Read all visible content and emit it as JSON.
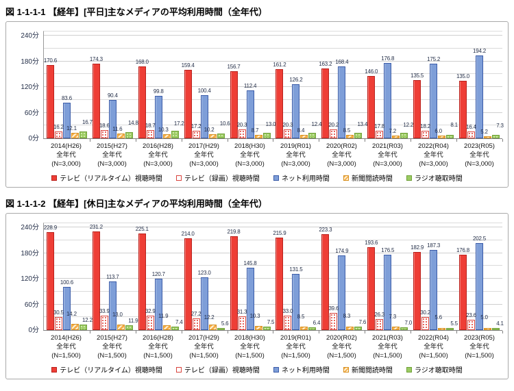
{
  "chart_data": [
    {
      "type": "bar",
      "title": "図 1-1-1-1 【経年】[平日]主なメディアの平均利用時間（全年代）",
      "y_unit": "分",
      "y_ticks": [
        0,
        60,
        120,
        180,
        240
      ],
      "ylim": [
        0,
        252
      ],
      "grid": true,
      "legend_position": "bottom",
      "categories": [
        {
          "year": "2014(H26)",
          "group": "全年代",
          "n": "(N=3,000)"
        },
        {
          "year": "2015(H27)",
          "group": "全年代",
          "n": "(N=3,000)"
        },
        {
          "year": "2016(H28)",
          "group": "全年代",
          "n": "(N=3,000)"
        },
        {
          "year": "2017(H29)",
          "group": "全年代",
          "n": "(N=3,000)"
        },
        {
          "year": "2018(H30)",
          "group": "全年代",
          "n": "(N=3,000)"
        },
        {
          "year": "2019(R01)",
          "group": "全年代",
          "n": "(N=3,000)"
        },
        {
          "year": "2020(R02)",
          "group": "全年代",
          "n": "(N=3,000)"
        },
        {
          "year": "2021(R03)",
          "group": "全年代",
          "n": "(N=3,000)"
        },
        {
          "year": "2022(R04)",
          "group": "全年代",
          "n": "(N=3,000)"
        },
        {
          "year": "2023(R05)",
          "group": "全年代",
          "n": "(N=3,000)"
        }
      ],
      "series": [
        {
          "id": "tv-real",
          "name": "テレビ（リアルタイム）視聴時間",
          "color": "#ee3e36",
          "values": [
            170.6,
            174.3,
            168.0,
            159.4,
            156.7,
            161.2,
            163.2,
            146.0,
            135.5,
            135.0
          ]
        },
        {
          "id": "tv-rec",
          "name": "テレビ（録画）視聴時間",
          "color": "#ffffff",
          "values": [
            16.2,
            18.6,
            18.7,
            17.2,
            20.3,
            20.3,
            20.2,
            17.8,
            18.2,
            16.4
          ]
        },
        {
          "id": "net",
          "name": "ネット利用時間",
          "color": "#7e9ed8",
          "values": [
            83.6,
            90.4,
            99.8,
            100.4,
            112.4,
            126.2,
            168.4,
            176.8,
            175.2,
            194.2
          ]
        },
        {
          "id": "news",
          "name": "新聞閲読時間",
          "color": "#f5ae49",
          "values": [
            12.1,
            11.6,
            10.3,
            10.2,
            8.7,
            8.4,
            8.5,
            7.2,
            6.0,
            5.2
          ]
        },
        {
          "id": "radio",
          "name": "ラジオ聴取時間",
          "color": "#9bcb63",
          "values": [
            16.7,
            14.8,
            17.2,
            10.6,
            13.0,
            12.4,
            13.4,
            12.2,
            8.1,
            7.3
          ]
        }
      ]
    },
    {
      "type": "bar",
      "title": "図 1-1-1-2 【経年】[休日]主なメディアの平均利用時間（全年代）",
      "y_unit": "分",
      "y_ticks": [
        0,
        60,
        120,
        180,
        240
      ],
      "ylim": [
        0,
        252
      ],
      "grid": true,
      "legend_position": "bottom",
      "categories": [
        {
          "year": "2014(H26)",
          "group": "全年代",
          "n": "(N=1,500)"
        },
        {
          "year": "2015(H27)",
          "group": "全年代",
          "n": "(N=1,500)"
        },
        {
          "year": "2016(H28)",
          "group": "全年代",
          "n": "(N=1,500)"
        },
        {
          "year": "2017(H29)",
          "group": "全年代",
          "n": "(N=1,500)"
        },
        {
          "year": "2018(H30)",
          "group": "全年代",
          "n": "(N=1,500)"
        },
        {
          "year": "2019(R01)",
          "group": "全年代",
          "n": "(N=1,500)"
        },
        {
          "year": "2020(R02)",
          "group": "全年代",
          "n": "(N=1,500)"
        },
        {
          "year": "2021(R03)",
          "group": "全年代",
          "n": "(N=1,500)"
        },
        {
          "year": "2022(R04)",
          "group": "全年代",
          "n": "(N=1,500)"
        },
        {
          "year": "2023(R05)",
          "group": "全年代",
          "n": "(N=1,500)"
        }
      ],
      "series": [
        {
          "id": "tv-real",
          "name": "テレビ（リアルタイム）視聴時間",
          "color": "#ee3e36",
          "values": [
            228.9,
            231.2,
            225.1,
            214.0,
            219.8,
            215.9,
            223.3,
            193.6,
            182.9,
            176.8
          ]
        },
        {
          "id": "tv-rec",
          "name": "テレビ（録画）視聴時間",
          "color": "#ffffff",
          "values": [
            30.5,
            33.9,
            32.9,
            27.2,
            31.3,
            33.0,
            39.6,
            26.3,
            30.2,
            23.6
          ]
        },
        {
          "id": "net",
          "name": "ネット利用時間",
          "color": "#7e9ed8",
          "values": [
            100.6,
            113.7,
            120.7,
            123.0,
            145.8,
            131.5,
            174.9,
            176.5,
            187.3,
            202.5
          ]
        },
        {
          "id": "news",
          "name": "新聞閲読時間",
          "color": "#f5ae49",
          "values": [
            14.2,
            13.0,
            11.9,
            12.2,
            10.3,
            8.5,
            8.3,
            7.3,
            5.6,
            5.0
          ]
        },
        {
          "id": "radio",
          "name": "ラジオ聴取時間",
          "color": "#9bcb63",
          "values": [
            12.2,
            11.9,
            7.4,
            5.6,
            7.5,
            6.4,
            7.6,
            7.0,
            5.5,
            4.1
          ]
        }
      ]
    }
  ]
}
